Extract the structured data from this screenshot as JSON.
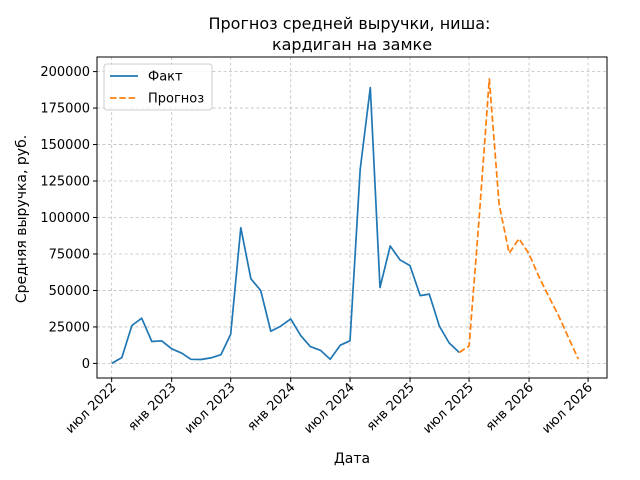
{
  "chart_data": {
    "type": "line",
    "title": [
      "Прогноз средней выручки, ниша:",
      "кардиган на замке"
    ],
    "xlabel": "Дата",
    "ylabel": "Средняя выручка, руб.",
    "xlim": [
      "2022-05-17",
      "2026-08-28"
    ],
    "ylim": [
      -10000,
      210000
    ],
    "grid": true,
    "legend_position": "top-left",
    "x_ticks": [
      {
        "date": "2022-07-01",
        "label": "июл 2022"
      },
      {
        "date": "2023-01-01",
        "label": "янв 2023"
      },
      {
        "date": "2023-07-01",
        "label": "июл 2023"
      },
      {
        "date": "2024-01-01",
        "label": "янв 2024"
      },
      {
        "date": "2024-07-01",
        "label": "июл 2024"
      },
      {
        "date": "2025-01-01",
        "label": "янв 2025"
      },
      {
        "date": "2025-07-01",
        "label": "июл 2025"
      },
      {
        "date": "2026-01-01",
        "label": "янв 2026"
      },
      {
        "date": "2026-07-01",
        "label": "июл 2026"
      }
    ],
    "y_ticks": [
      {
        "value": 0,
        "label": "0"
      },
      {
        "value": 25000,
        "label": "25000"
      },
      {
        "value": 50000,
        "label": "50000"
      },
      {
        "value": 75000,
        "label": "75000"
      },
      {
        "value": 100000,
        "label": "100000"
      },
      {
        "value": 125000,
        "label": "125000"
      },
      {
        "value": 150000,
        "label": "150000"
      },
      {
        "value": 175000,
        "label": "175000"
      },
      {
        "value": 200000,
        "label": "200000"
      }
    ],
    "series": [
      {
        "name": "Факт",
        "style": "solid",
        "color": "#1f77b4",
        "points": [
          {
            "x": "2022-07-01",
            "y": 0
          },
          {
            "x": "2022-08-01",
            "y": 4000
          },
          {
            "x": "2022-09-01",
            "y": 26000
          },
          {
            "x": "2022-10-01",
            "y": 31000
          },
          {
            "x": "2022-11-01",
            "y": 15000
          },
          {
            "x": "2022-12-01",
            "y": 15500
          },
          {
            "x": "2023-01-01",
            "y": 10000
          },
          {
            "x": "2023-02-01",
            "y": 7000
          },
          {
            "x": "2023-03-01",
            "y": 2800
          },
          {
            "x": "2023-04-01",
            "y": 2700
          },
          {
            "x": "2023-05-01",
            "y": 3800
          },
          {
            "x": "2023-06-01",
            "y": 6000
          },
          {
            "x": "2023-07-01",
            "y": 20000
          },
          {
            "x": "2023-08-01",
            "y": 93000
          },
          {
            "x": "2023-09-01",
            "y": 58000
          },
          {
            "x": "2023-10-01",
            "y": 50000
          },
          {
            "x": "2023-11-01",
            "y": 22000
          },
          {
            "x": "2023-12-01",
            "y": 25500
          },
          {
            "x": "2024-01-01",
            "y": 30500
          },
          {
            "x": "2024-02-01",
            "y": 19000
          },
          {
            "x": "2024-03-01",
            "y": 11500
          },
          {
            "x": "2024-04-01",
            "y": 9000
          },
          {
            "x": "2024-05-01",
            "y": 2800
          },
          {
            "x": "2024-06-01",
            "y": 12500
          },
          {
            "x": "2024-07-01",
            "y": 15500
          },
          {
            "x": "2024-08-01",
            "y": 133000
          },
          {
            "x": "2024-09-01",
            "y": 189000
          },
          {
            "x": "2024-10-01",
            "y": 52000
          },
          {
            "x": "2024-11-01",
            "y": 80500
          },
          {
            "x": "2024-12-01",
            "y": 71000
          },
          {
            "x": "2025-01-01",
            "y": 67000
          },
          {
            "x": "2025-02-01",
            "y": 46500
          },
          {
            "x": "2025-03-01",
            "y": 47500
          },
          {
            "x": "2025-04-01",
            "y": 25500
          },
          {
            "x": "2025-05-01",
            "y": 14000
          },
          {
            "x": "2025-06-01",
            "y": 7500
          }
        ]
      },
      {
        "name": "Прогноз",
        "style": "dashed",
        "color": "#ff7f0e",
        "points": [
          {
            "x": "2025-06-01",
            "y": 7500
          },
          {
            "x": "2025-07-01",
            "y": 12000
          },
          {
            "x": "2025-08-01",
            "y": 100000
          },
          {
            "x": "2025-09-01",
            "y": 195000
          },
          {
            "x": "2025-10-01",
            "y": 109000
          },
          {
            "x": "2025-11-01",
            "y": 75500
          },
          {
            "x": "2025-12-01",
            "y": 85500
          },
          {
            "x": "2026-01-01",
            "y": 75000
          },
          {
            "x": "2026-02-01",
            "y": 59000
          },
          {
            "x": "2026-03-01",
            "y": 46500
          },
          {
            "x": "2026-04-01",
            "y": 33000
          },
          {
            "x": "2026-05-01",
            "y": 18000
          },
          {
            "x": "2026-06-01",
            "y": 3000
          }
        ]
      }
    ]
  }
}
